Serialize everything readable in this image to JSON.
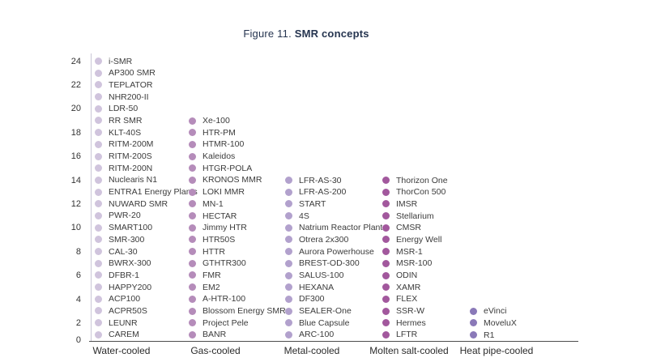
{
  "title": {
    "prefix": "Figure 11. ",
    "main": "SMR concepts"
  },
  "colors": {
    "title_text": "#263550",
    "label_text": "#3b3b3b",
    "water_cooled_dot": "#d0c4dd",
    "gas_cooled_dot": "#b58cba",
    "metal_cooled_dot": "#b2a1cd",
    "molten_salt_cooled_dot": "#a2589d",
    "heat_pipe_cooled_dot": "#8a79b8"
  },
  "chart_data": {
    "type": "scatter",
    "subtype": "stacked-dot-count-columns",
    "title": "Figure 11. SMR concepts",
    "xlabel": "",
    "ylabel": "",
    "ylim": [
      0,
      24
    ],
    "yticks": [
      0,
      2,
      4,
      6,
      8,
      10,
      12,
      14,
      16,
      18,
      20,
      22,
      24
    ],
    "grid": false,
    "legend": "none",
    "categories": [
      "Water-cooled",
      "Gas-cooled",
      "Metal-cooled",
      "Molten salt-cooled",
      "Heat pipe-cooled"
    ],
    "note": "Each column stacks one dot per SMR concept; items listed top (highest count) to bottom (count 1).",
    "series": [
      {
        "name": "Water-cooled",
        "color": "#d0c4dd",
        "count": 24,
        "items": [
          "i-SMR",
          "AP300 SMR",
          "TEPLATOR",
          "NHR200-II",
          "LDR-50",
          "RR SMR",
          "KLT-40S",
          "RITM-200M",
          "RITM-200S",
          "RITM-200N",
          "Nuclearis N1",
          "ENTRA1 Energy Plants",
          "NUWARD SMR",
          "PWR-20",
          "SMART100",
          "SMR-300",
          "CAL-30",
          "BWRX-300",
          "DFBR-1",
          "HAPPY200",
          "ACP100",
          "ACPR50S",
          "LEUNR",
          "CAREM"
        ]
      },
      {
        "name": "Gas-cooled",
        "color": "#b58cba",
        "count": 19,
        "items": [
          "Xe-100",
          "HTR-PM",
          "HTMR-100",
          "Kaleidos",
          "HTGR-POLA",
          "KRONOS MMR",
          "LOKI MMR",
          "MN-1",
          "HECTAR",
          "Jimmy HTR",
          "HTR50S",
          "HTTR",
          "GTHTR300",
          "FMR",
          "EM2",
          "A-HTR-100",
          "Blossom Energy SMR",
          "Project Pele",
          "BANR"
        ]
      },
      {
        "name": "Metal-cooled",
        "color": "#b2a1cd",
        "count": 14,
        "items": [
          "LFR-AS-30",
          "LFR-AS-200",
          "START",
          "4S",
          "Natrium Reactor Plant",
          "Otrera 2x300",
          "Aurora Powerhouse",
          "BREST-OD-300",
          "SALUS-100",
          "HEXANA",
          "DF300",
          "SEALER-One",
          "Blue Capsule",
          "ARC-100"
        ]
      },
      {
        "name": "Molten salt-cooled",
        "color": "#a2589d",
        "count": 14,
        "items": [
          "Thorizon One",
          "ThorCon 500",
          "IMSR",
          "Stellarium",
          "CMSR",
          "Energy Well",
          "MSR-1",
          "MSR-100",
          "ODIN",
          "XAMR",
          "FLEX",
          "SSR-W",
          "Hermes",
          "LFTR"
        ]
      },
      {
        "name": "Heat pipe-cooled",
        "color": "#8a79b8",
        "count": 3,
        "items": [
          "eVinci",
          "MoveluX",
          "R1"
        ]
      }
    ]
  }
}
